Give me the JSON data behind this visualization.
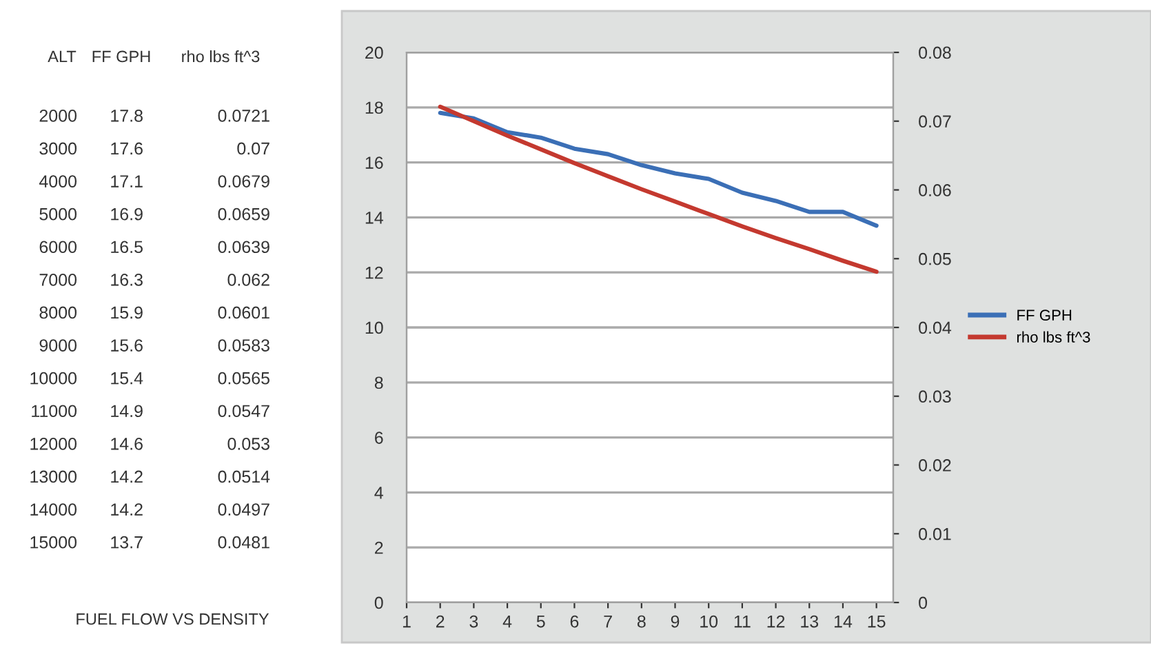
{
  "chart_data": {
    "type": "line",
    "title": "FUEL FLOW VS DENSITY",
    "annotations": [
      "ALT",
      "FF GPH",
      "rho lbs ft^3",
      "2000",
      "17.8",
      "0.0721",
      "3000",
      "17.6",
      "0.07",
      "4000",
      "17.1",
      "0.0679",
      "5000",
      "16.9",
      "0.0659",
      "6000",
      "16.5",
      "0.0639",
      "7000",
      "16.3",
      "0.062",
      "8000",
      "15.9",
      "0.0601",
      "9000",
      "15.6",
      "0.0583",
      "10000",
      "15.4",
      "0.0565",
      "11000",
      "14.9",
      "0.0547",
      "12000",
      "14.6",
      "0.053",
      "13000",
      "14.2",
      "0.0514",
      "14000",
      "14.2",
      "0.0497",
      "15000",
      "13.7",
      "0.0481"
    ],
    "x": [
      2,
      3,
      4,
      5,
      6,
      7,
      8,
      9,
      10,
      11,
      12,
      13,
      14,
      15
    ],
    "series": [
      {
        "name": "FF GPH",
        "color": "#3b6fb6",
        "values": [
          17.8,
          17.6,
          17.1,
          16.9,
          16.5,
          16.3,
          15.9,
          15.6,
          15.4,
          14.9,
          14.6,
          14.2,
          14.2,
          13.7
        ]
      },
      {
        "name": "rho lbs ft^3",
        "color": "#c4392f",
        "axis": "y2",
        "values": [
          0.0721,
          0.07,
          0.0679,
          0.0659,
          0.0639,
          0.062,
          0.0601,
          0.0583,
          0.0565,
          0.0547,
          0.053,
          0.0514,
          0.0497,
          0.0481
        ]
      }
    ],
    "xlim": [
      1,
      15.5
    ],
    "xticks": [
      1,
      2,
      3,
      4,
      5,
      6,
      7,
      8,
      9,
      10,
      11,
      12,
      13,
      14,
      15
    ],
    "ylim": [
      0,
      20
    ],
    "yticks": [
      0,
      2,
      4,
      6,
      8,
      10,
      12,
      14,
      16,
      18,
      20
    ],
    "y2lim": [
      0,
      0.08
    ],
    "y2ticks": [
      0,
      0.01,
      0.02,
      0.03,
      0.04,
      0.05,
      0.06,
      0.07,
      0.08
    ],
    "grid": "y",
    "legend": "right",
    "marker": "none",
    "line_style": "solid"
  }
}
